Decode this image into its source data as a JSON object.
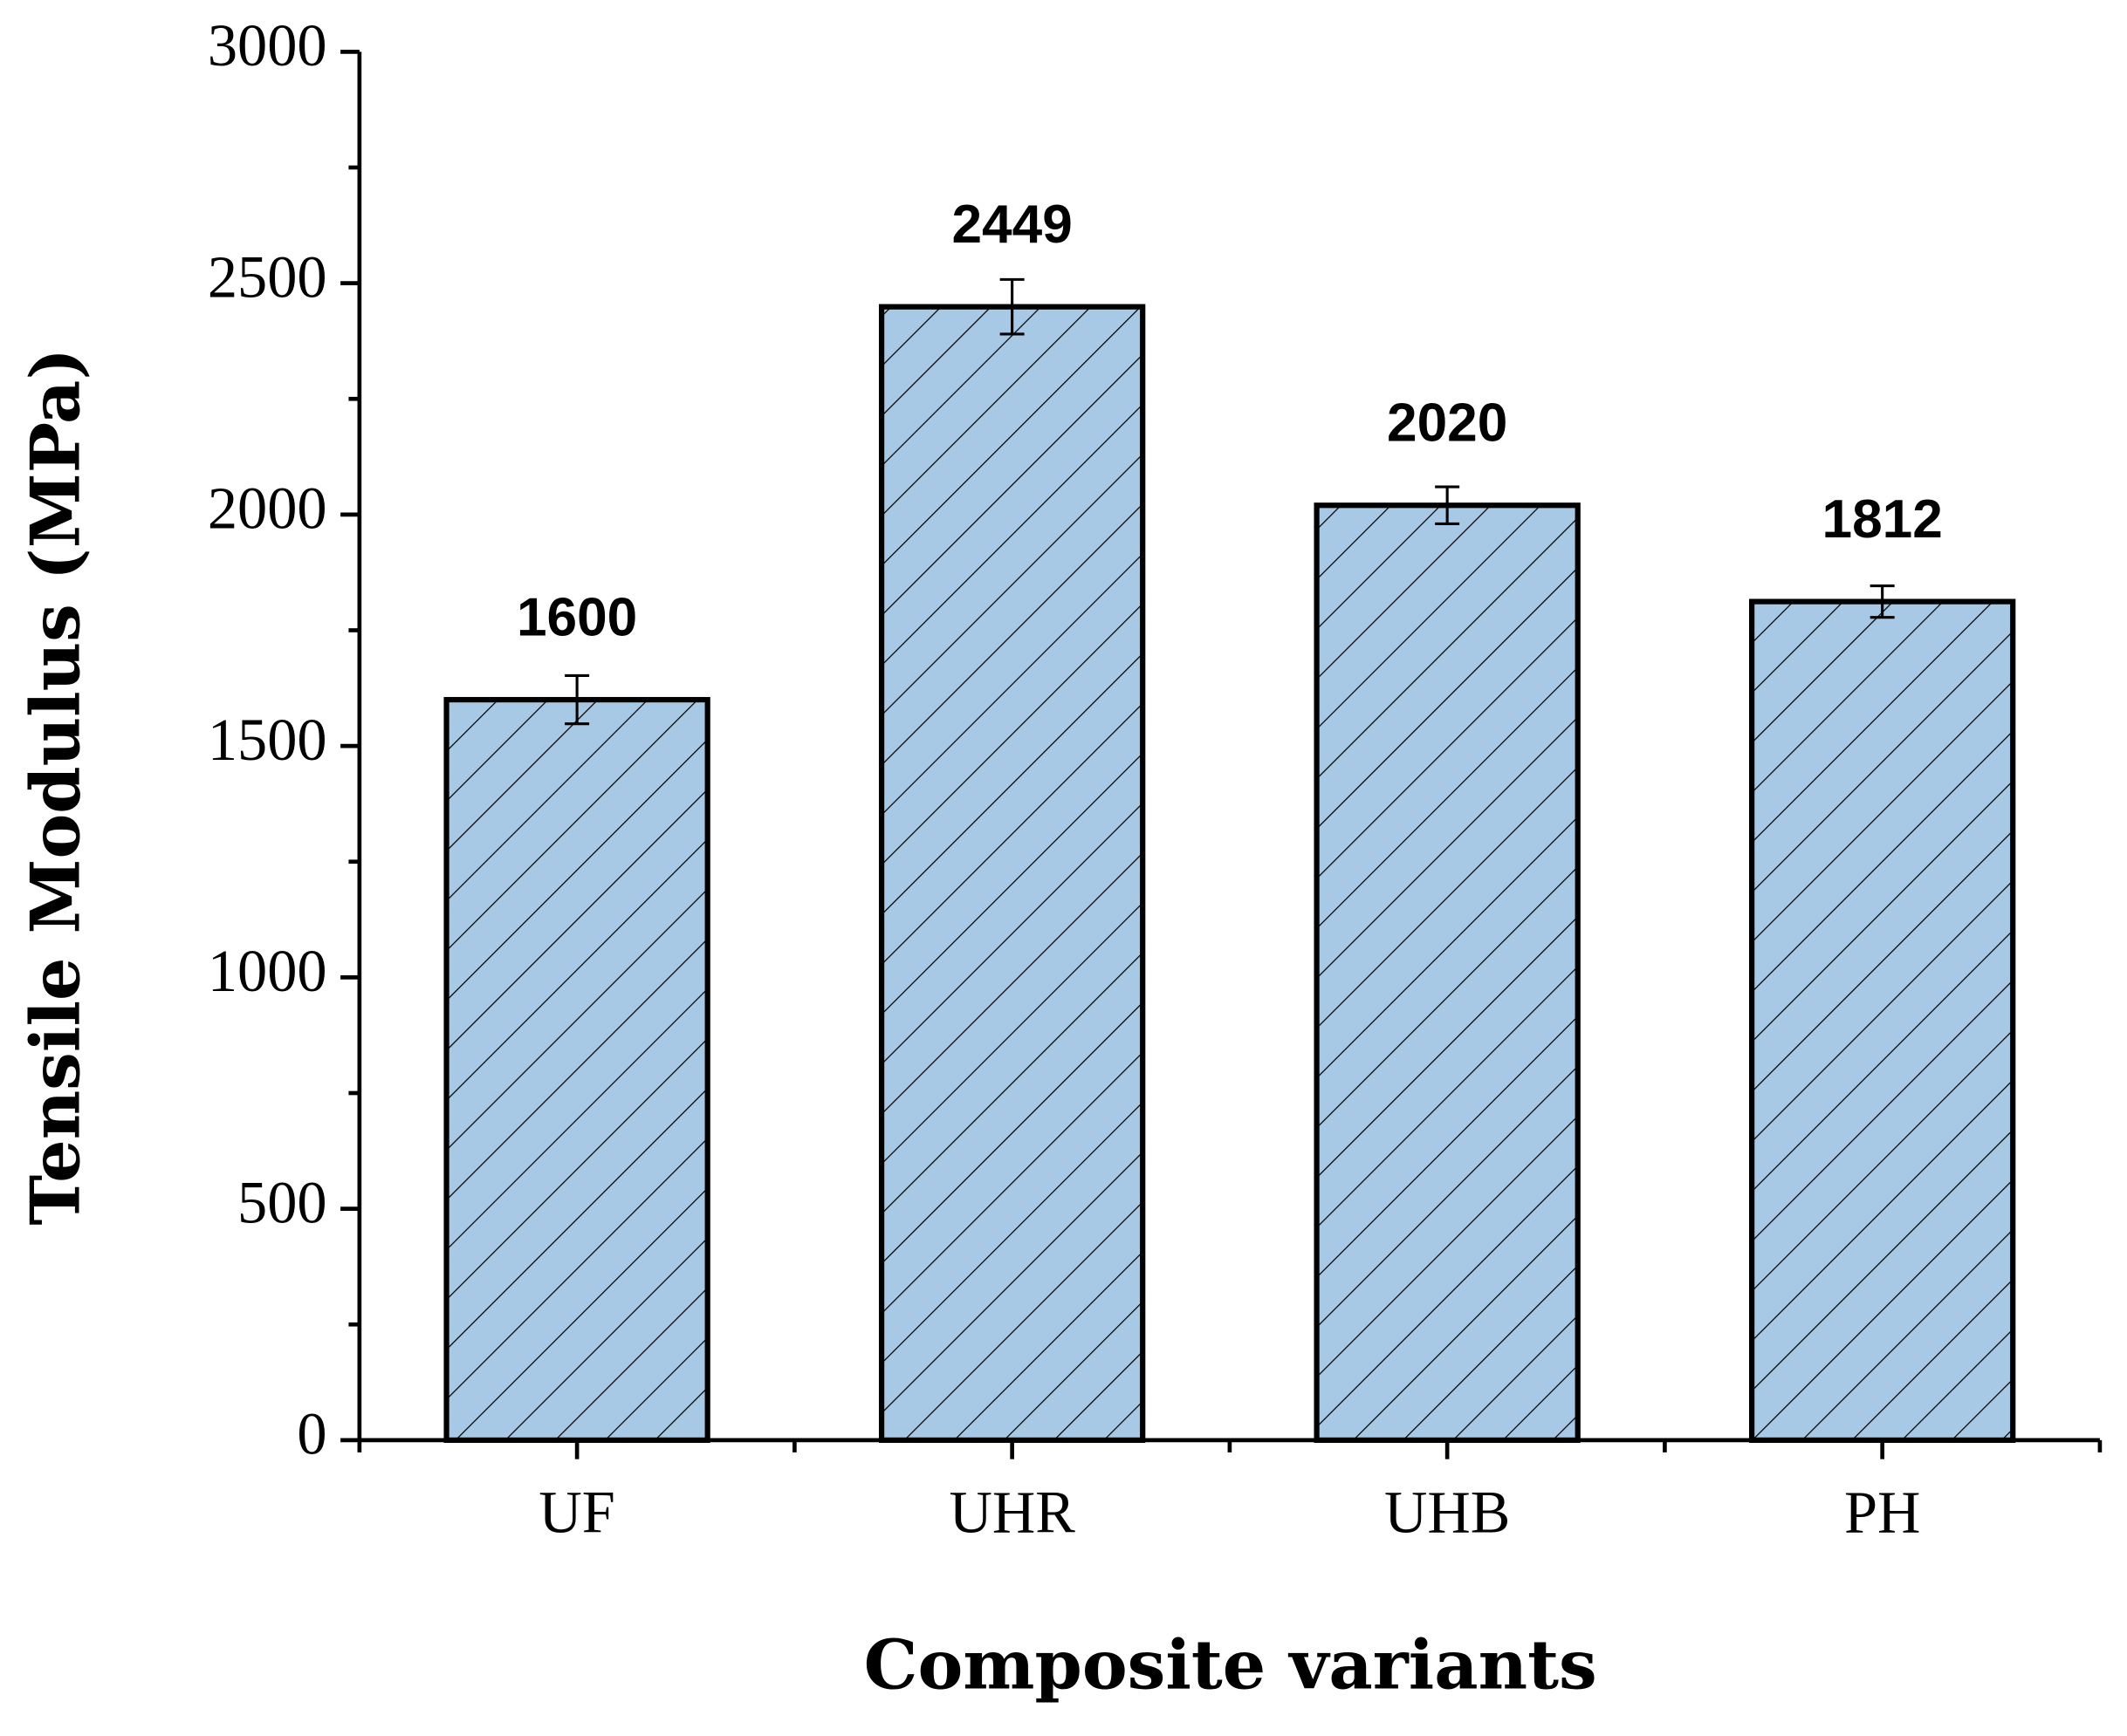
{
  "chart_data": {
    "type": "bar",
    "x_label": "Composite variants",
    "y_label": "Tensile Modulus (MPa)",
    "categories": [
      "UF",
      "UHR",
      "UHB",
      "PH"
    ],
    "values": [
      1600,
      2449,
      2020,
      1812
    ],
    "errors": [
      52,
      59,
      40,
      34
    ],
    "color": "#a7c9e5",
    "hatch": true,
    "ylim": [
      0,
      3000
    ],
    "yticks": [
      0,
      500,
      1000,
      1500,
      2000,
      2500,
      3000
    ],
    "yminorticks": [
      250,
      750,
      1250,
      1750,
      2250,
      2750
    ]
  }
}
